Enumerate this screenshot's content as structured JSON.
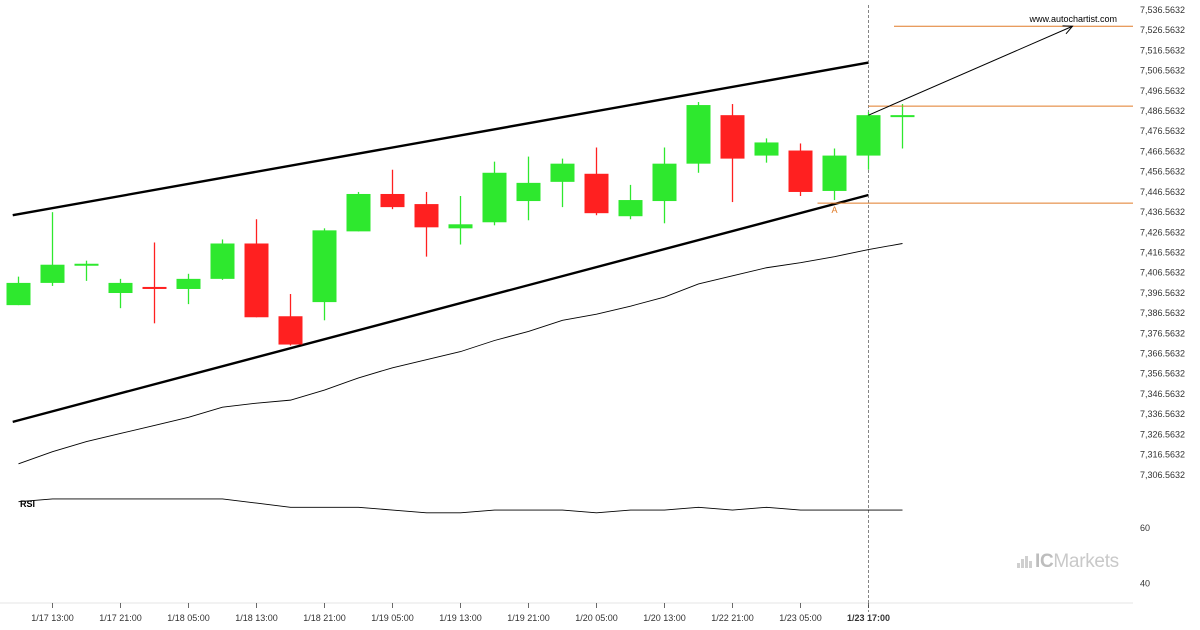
{
  "watermark": {
    "brand": "ICMarkets",
    "brand_prefix": "IC",
    "brand_suffix": "Markets",
    "url": "www.autochartist.com"
  },
  "colors": {
    "bull": "#2ee82e",
    "bear": "#ff2020",
    "pattern_line": "#000000",
    "level_line": "#e07b28",
    "ma_line": "#000000",
    "rsi_line": "#000000",
    "grid_text": "#333333"
  },
  "chart_data": [
    {
      "type": "candlestick",
      "title": "",
      "x_tick_labels": [
        "1/17 13:00",
        "1/17 21:00",
        "1/18 05:00",
        "1/18 13:00",
        "1/18 21:00",
        "1/19 05:00",
        "1/19 13:00",
        "1/19 21:00",
        "1/20 05:00",
        "1/20 13:00",
        "1/22 21:00",
        "1/23 05:00",
        "1/23 17:00"
      ],
      "x_tick_candle_index": [
        1,
        3,
        5,
        7,
        9,
        11,
        13,
        15,
        17,
        19,
        21,
        23,
        25
      ],
      "y_tick_labels": [
        "7,536.5632",
        "7,526.5632",
        "7,516.5632",
        "7,506.5632",
        "7,496.5632",
        "7,486.5632",
        "7,476.5632",
        "7,466.5632",
        "7,456.5632",
        "7,446.5632",
        "7,436.5632",
        "7,426.5632",
        "7,416.5632",
        "7,406.5632",
        "7,396.5632",
        "7,386.5632",
        "7,376.5632",
        "7,366.5632",
        "7,356.5632",
        "7,346.5632",
        "7,336.5632",
        "7,326.5632",
        "7,316.5632",
        "7,306.5632"
      ],
      "ylim": [
        7301.5,
        7540
      ],
      "candles": [
        {
          "o": 7390.5,
          "h": 7404.6,
          "l": 7390.5,
          "c": 7401.5
        },
        {
          "o": 7401.5,
          "h": 7436.5,
          "l": 7400.0,
          "c": 7410.5
        },
        {
          "o": 7410.5,
          "h": 7412.5,
          "l": 7402.5,
          "c": 7410.5
        },
        {
          "o": 7396.5,
          "h": 7403.5,
          "l": 7389.0,
          "c": 7401.5
        },
        {
          "o": 7399.5,
          "h": 7421.5,
          "l": 7381.5,
          "c": 7398.5
        },
        {
          "o": 7398.5,
          "h": 7406.0,
          "l": 7391.0,
          "c": 7403.5
        },
        {
          "o": 7403.5,
          "h": 7423.0,
          "l": 7403.0,
          "c": 7421.0
        },
        {
          "o": 7421.0,
          "h": 7433.0,
          "l": 7384.5,
          "c": 7384.5
        },
        {
          "o": 7385.0,
          "h": 7396.0,
          "l": 7370.5,
          "c": 7371.0
        },
        {
          "o": 7392.0,
          "h": 7428.5,
          "l": 7383.0,
          "c": 7427.5
        },
        {
          "o": 7427.0,
          "h": 7446.5,
          "l": 7427.0,
          "c": 7445.5
        },
        {
          "o": 7445.5,
          "h": 7457.5,
          "l": 7438.0,
          "c": 7439.0
        },
        {
          "o": 7440.5,
          "h": 7446.5,
          "l": 7414.5,
          "c": 7429.0
        },
        {
          "o": 7428.5,
          "h": 7444.5,
          "l": 7420.5,
          "c": 7430.5
        },
        {
          "o": 7431.5,
          "h": 7461.5,
          "l": 7430.0,
          "c": 7456.0
        },
        {
          "o": 7442.0,
          "h": 7464.0,
          "l": 7432.5,
          "c": 7451.0
        },
        {
          "o": 7451.5,
          "h": 7463.0,
          "l": 7439.0,
          "c": 7460.5
        },
        {
          "o": 7455.5,
          "h": 7468.5,
          "l": 7435.0,
          "c": 7436.0
        },
        {
          "o": 7434.5,
          "h": 7450.0,
          "l": 7433.0,
          "c": 7442.5
        },
        {
          "o": 7442.0,
          "h": 7468.5,
          "l": 7431.0,
          "c": 7460.5
        },
        {
          "o": 7460.5,
          "h": 7491.0,
          "l": 7456.0,
          "c": 7489.5
        },
        {
          "o": 7484.5,
          "h": 7490.0,
          "l": 7441.5,
          "c": 7463.0
        },
        {
          "o": 7464.5,
          "h": 7473.0,
          "l": 7461.0,
          "c": 7471.0
        },
        {
          "o": 7467.0,
          "h": 7470.5,
          "l": 7444.5,
          "c": 7446.5
        },
        {
          "o": 7447.0,
          "h": 7468.0,
          "l": 7442.5,
          "c": 7464.5
        },
        {
          "o": 7464.5,
          "h": 7486.0,
          "l": 7457.5,
          "c": 7484.5
        },
        {
          "o": 7484.0,
          "h": 7490.0,
          "l": 7468.0,
          "c": 7484.0
        }
      ],
      "moving_average": [
        7312.0,
        7318.0,
        7323.0,
        7327.0,
        7331.0,
        7335.0,
        7340.0,
        7342.0,
        7343.5,
        7348.5,
        7354.5,
        7359.5,
        7363.5,
        7367.5,
        7373.0,
        7377.5,
        7383.0,
        7386.0,
        7390.0,
        7394.5,
        7401.0,
        7405.0,
        7409.0,
        7411.5,
        7414.5,
        7418.0,
        7421.0
      ],
      "pattern": {
        "name": "rising channel",
        "upper_line": {
          "start": {
            "candle": 0,
            "price": 7435.5
          },
          "end": {
            "candle": 25,
            "price": 7510.5
          }
        },
        "lower_line": {
          "start": {
            "candle": 0,
            "price": 7333.5
          },
          "end": {
            "candle": 25,
            "price": 7445.0
          }
        }
      },
      "forecast_arrow": {
        "start": {
          "candle": 25,
          "price": 7484.5
        },
        "end": {
          "candle": 31,
          "price": 7528.5
        }
      },
      "levels": [
        {
          "name": "target",
          "price": 7528.5
        },
        {
          "name": "resistance",
          "price": 7489.0
        },
        {
          "name": "support",
          "price": 7441.0
        }
      ],
      "point_label": "A",
      "current_time_candle": 25
    },
    {
      "type": "line",
      "title": "RSI",
      "y_tick_labels": [
        "60",
        "40"
      ],
      "ylim": [
        37,
        73
      ],
      "values": [
        69.5,
        70.5,
        70.5,
        70.5,
        70.5,
        70.5,
        70.5,
        69.0,
        67.5,
        67.5,
        67.5,
        66.5,
        65.5,
        65.5,
        66.5,
        66.5,
        66.5,
        65.5,
        66.5,
        66.5,
        67.5,
        66.5,
        67.5,
        66.5,
        66.5,
        66.5,
        66.5
      ]
    }
  ]
}
